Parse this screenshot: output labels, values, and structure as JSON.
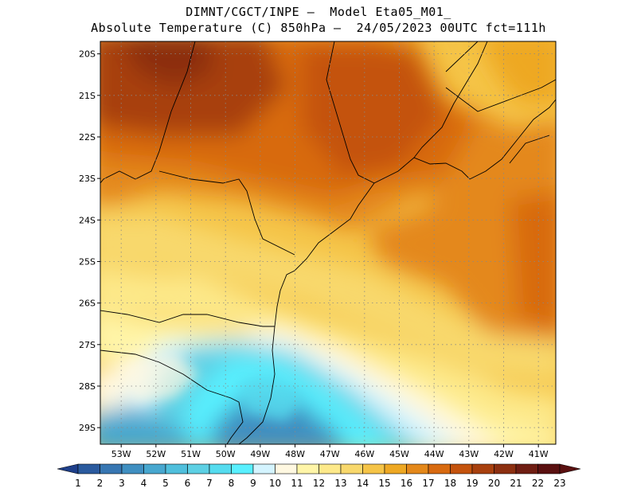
{
  "header": {
    "line1": "DIMNT/CGCT/INPE –  Model Eta05_M01_",
    "line2": "Absolute Temperature (C) 850hPa –  24/05/2023 00UTC fct=111h"
  },
  "map": {
    "lat_labels": [
      "20S",
      "21S",
      "22S",
      "23S",
      "24S",
      "25S",
      "26S",
      "27S",
      "28S",
      "29S"
    ],
    "lon_labels": [
      "53W",
      "52W",
      "51W",
      "50W",
      "49W",
      "48W",
      "47W",
      "46W",
      "45W",
      "44W",
      "43W",
      "42W",
      "41W"
    ],
    "extent": {
      "lon_min": -53.6,
      "lon_max": -40.5,
      "lat_min": -29.4,
      "lat_max": -19.7
    }
  },
  "colorbar": {
    "labels": [
      "1",
      "2",
      "3",
      "4",
      "5",
      "6",
      "7",
      "8",
      "9",
      "10",
      "11",
      "12",
      "13",
      "14",
      "15",
      "16",
      "17",
      "18",
      "19",
      "20",
      "21",
      "22",
      "23"
    ],
    "colors": [
      "#1e3f8a",
      "#2a5a9e",
      "#3776b2",
      "#3f8fc1",
      "#47a7cf",
      "#4fbfdc",
      "#5dd0e4",
      "#55dcef",
      "#59f0ff",
      "#d4f4ff",
      "#fff8e1",
      "#fff5a8",
      "#fde98a",
      "#f8d86c",
      "#f5c447",
      "#eea823",
      "#e4881a",
      "#d86a10",
      "#c4530d",
      "#a8400e",
      "#8c2f10",
      "#6f1d12",
      "#5a1010"
    ],
    "ends": {
      "left": "#1e3f8a",
      "right": "#5a1010"
    }
  }
}
